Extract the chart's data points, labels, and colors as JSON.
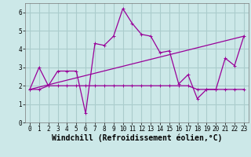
{
  "xlabel": "Windchill (Refroidissement éolien,°C)",
  "background_color": "#cce8e8",
  "grid_color": "#aacccc",
  "line_color": "#990099",
  "hours": [
    0,
    1,
    2,
    3,
    4,
    5,
    6,
    7,
    8,
    9,
    10,
    11,
    12,
    13,
    14,
    15,
    16,
    17,
    18,
    19,
    20,
    21,
    22,
    23
  ],
  "zigzag": [
    1.8,
    3.0,
    2.0,
    2.8,
    2.8,
    2.8,
    0.5,
    4.3,
    4.2,
    4.7,
    6.2,
    5.4,
    4.8,
    4.7,
    3.8,
    3.9,
    2.1,
    2.6,
    1.3,
    1.8,
    1.8,
    3.5,
    3.1,
    4.7
  ],
  "flat_line": [
    1.8,
    1.8,
    2.0,
    2.0,
    2.0,
    2.0,
    2.0,
    2.0,
    2.0,
    2.0,
    2.0,
    2.0,
    2.0,
    2.0,
    2.0,
    2.0,
    2.0,
    2.0,
    1.8,
    1.8,
    1.8,
    1.8,
    1.8,
    1.8
  ],
  "trend_line_x": [
    0,
    23
  ],
  "trend_line_y": [
    1.8,
    4.7
  ],
  "ylim": [
    0,
    6.5
  ],
  "xlim": [
    -0.5,
    23.5
  ],
  "yticks": [
    0,
    1,
    2,
    3,
    4,
    5,
    6
  ],
  "xticks": [
    0,
    1,
    2,
    3,
    4,
    5,
    6,
    7,
    8,
    9,
    10,
    11,
    12,
    13,
    14,
    15,
    16,
    17,
    18,
    19,
    20,
    21,
    22,
    23
  ],
  "tick_fontsize": 5.5,
  "xlabel_fontsize": 7.0,
  "figwidth": 3.2,
  "figheight": 2.0,
  "dpi": 100
}
